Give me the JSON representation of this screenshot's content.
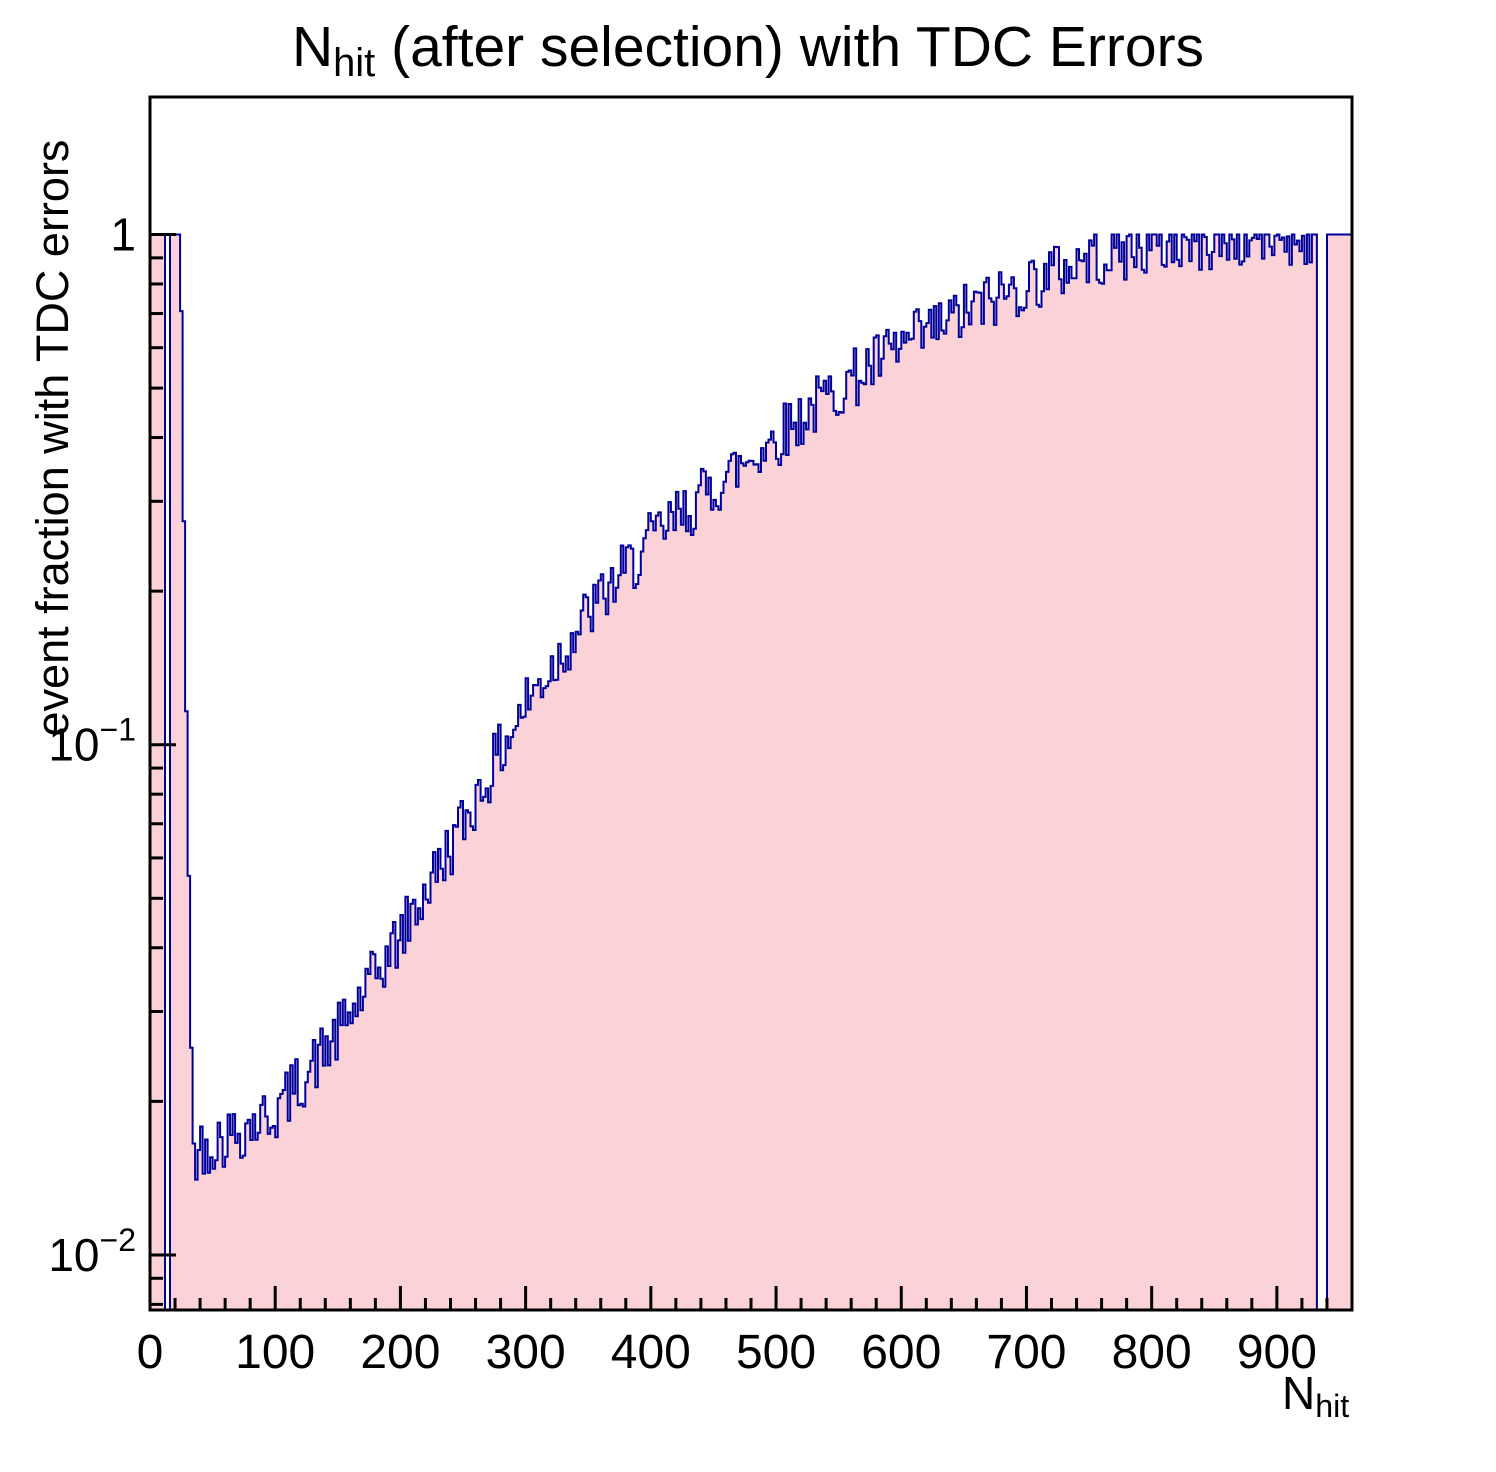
{
  "chart_data": {
    "type": "bar",
    "subtype": "histogram-step-filled",
    "title": {
      "main": "N",
      "sub": "hit",
      "rest": " (after selection) with TDC Errors"
    },
    "xlabel": {
      "main": "N",
      "sub": "hit"
    },
    "ylabel": "event fraction with TDC errors",
    "x_min": 0,
    "x_max": 960,
    "bin_width": 2,
    "y_min": 0.0078,
    "y_max": 1.86,
    "y_scale": "log",
    "grid": false,
    "legend": "none",
    "x_ticks": {
      "major_step": 100,
      "minor_step": 20,
      "labels": [
        "0",
        "100",
        "200",
        "300",
        "400",
        "500",
        "600",
        "700",
        "800",
        "900"
      ]
    },
    "y_ticks": {
      "major": [
        {
          "value": 1,
          "base": "1",
          "exp": ""
        },
        {
          "value": 0.1,
          "base": "10",
          "exp": "−1"
        },
        {
          "value": 0.01,
          "base": "10",
          "exp": "−2"
        }
      ]
    },
    "trend_anchors": [
      [
        24,
        1.0
      ],
      [
        34,
        0.016
      ],
      [
        60,
        0.017
      ],
      [
        100,
        0.019
      ],
      [
        150,
        0.027
      ],
      [
        200,
        0.042
      ],
      [
        250,
        0.07
      ],
      [
        300,
        0.12
      ],
      [
        350,
        0.18
      ],
      [
        400,
        0.25
      ],
      [
        450,
        0.32
      ],
      [
        500,
        0.4
      ],
      [
        550,
        0.5
      ],
      [
        600,
        0.6
      ],
      [
        650,
        0.7
      ],
      [
        700,
        0.8
      ],
      [
        750,
        0.9
      ],
      [
        800,
        0.95
      ],
      [
        850,
        0.97
      ],
      [
        900,
        0.99
      ],
      [
        960,
        1.0
      ]
    ],
    "overrides": [
      {
        "from": 2,
        "to": 12,
        "y": 1
      },
      {
        "from": 12,
        "to": 17,
        "y": 0
      },
      {
        "from": 17,
        "to": 24,
        "y": 1
      },
      {
        "from": 933,
        "to": 940,
        "y": 0
      },
      {
        "from": 940,
        "to": 960,
        "y": 1
      }
    ],
    "noise_decades": 0.06,
    "seed": 42,
    "colors": {
      "line": "#00009a",
      "fill": "#fad2d8",
      "axis": "#000000"
    }
  }
}
